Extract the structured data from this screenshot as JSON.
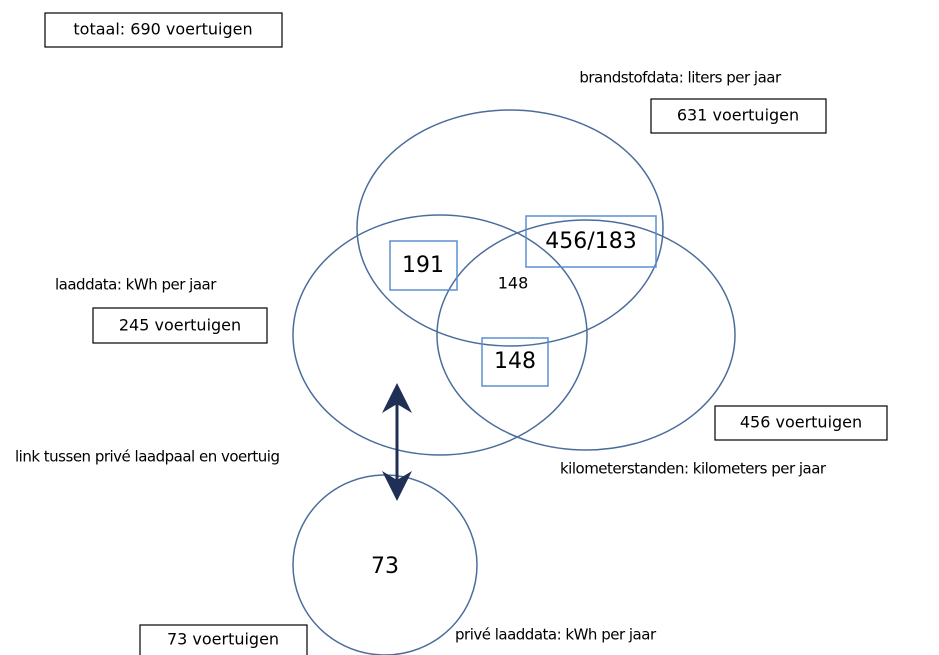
{
  "total": "totaal: 690 voertuigen",
  "sets": [
    {
      "label": "brandstofdata: liters per jaar",
      "count": "631 voertuigen"
    },
    {
      "label": "laaddata: kWh per jaar",
      "count": "245 voertuigen"
    },
    {
      "label": "kilometerstanden: kilometers per jaar",
      "count": "456 voertuigen"
    },
    {
      "label": "privé laaddata: kWh per jaar",
      "count": "73 voertuigen"
    }
  ],
  "regions": {
    "fuel_charge": "191",
    "fuel_km": "456/183",
    "all_three": "148",
    "charge_km": "148",
    "private": "73"
  },
  "link": "link tussen privé laadpaal en voertuig"
}
